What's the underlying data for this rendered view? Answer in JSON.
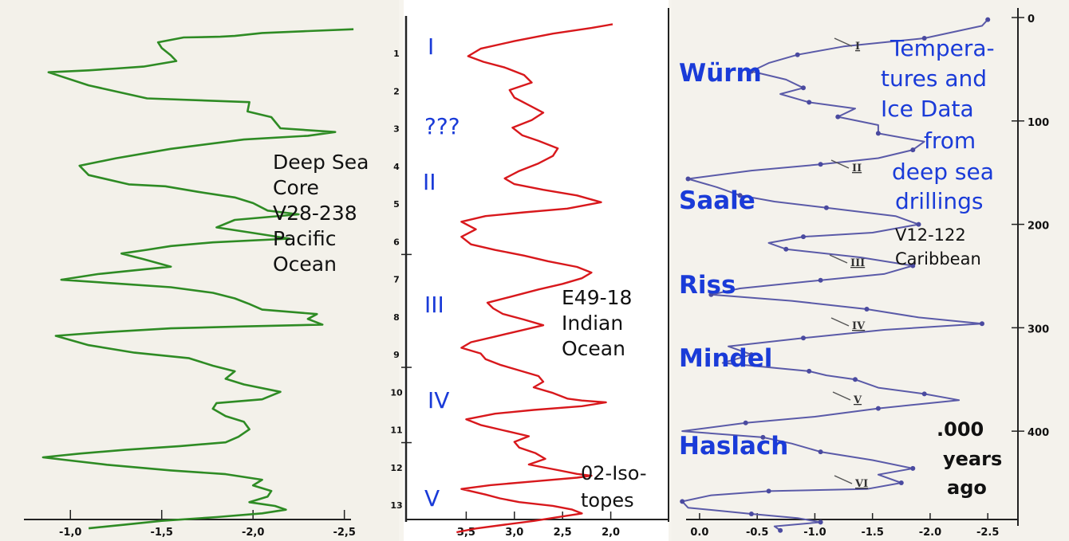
{
  "chart_data": [
    {
      "type": "line",
      "panel": "left",
      "color": "#2e8b24",
      "xlabel": "",
      "ylabel": "",
      "x_ticks": [
        "-1,0",
        "-1,5",
        "-2,0",
        "-2,5"
      ],
      "xlim": [
        -0.75,
        -2.65
      ],
      "ylim": [
        0,
        13
      ],
      "annotation": [
        "Deep Sea",
        "Core",
        "V28-238",
        "Pacific",
        "Ocean"
      ],
      "series": [
        {
          "name": "V28-238",
          "x": [
            -2.55,
            -2.3,
            -2.05,
            -1.9,
            -1.82,
            -1.62,
            -1.48,
            -1.5,
            -1.55,
            -1.58,
            -1.4,
            -1.25,
            -1.1,
            -0.88,
            -1.1,
            -1.42,
            -1.98,
            -1.97,
            -2.1,
            -2.15,
            -2.45,
            -2.3,
            -1.95,
            -1.55,
            -1.25,
            -1.05,
            -1.1,
            -1.32,
            -1.52,
            -1.7,
            -1.9,
            -2.0,
            -2.08,
            -2.25,
            -1.9,
            -1.8,
            -2.0,
            -2.2,
            -1.78,
            -1.55,
            -1.42,
            -1.28,
            -1.4,
            -1.55,
            -1.35,
            -1.15,
            -0.95,
            -1.25,
            -1.55,
            -1.78,
            -1.9,
            -1.98,
            -2.05,
            -2.35,
            -2.3,
            -2.38,
            -1.95,
            -1.55,
            -1.2,
            -0.92,
            -1.1,
            -1.35,
            -1.65,
            -1.78,
            -1.9,
            -1.85,
            -1.95,
            -2.15,
            -2.05,
            -1.8,
            -1.78,
            -1.85,
            -1.95,
            -1.98,
            -1.92,
            -1.85,
            -1.6,
            -1.3,
            -1.05,
            -0.85,
            -1.2,
            -1.55,
            -1.85,
            -2.05,
            -2.0,
            -2.1,
            -2.08,
            -1.98,
            -2.12,
            -2.18,
            -2.05,
            -1.8,
            -1.5,
            -1.3,
            -1.1
          ],
          "y": [
            0.1,
            0.15,
            0.2,
            0.28,
            0.3,
            0.32,
            0.45,
            0.6,
            0.8,
            0.95,
            1.1,
            1.15,
            1.2,
            1.25,
            1.6,
            1.95,
            2.05,
            2.3,
            2.45,
            2.75,
            2.85,
            2.95,
            3.05,
            3.3,
            3.55,
            3.75,
            4.0,
            4.25,
            4.3,
            4.45,
            4.6,
            4.75,
            4.95,
            5.05,
            5.2,
            5.4,
            5.55,
            5.7,
            5.8,
            5.9,
            6.0,
            6.1,
            6.25,
            6.45,
            6.55,
            6.65,
            6.8,
            6.9,
            7.0,
            7.15,
            7.3,
            7.45,
            7.6,
            7.72,
            7.85,
            8.0,
            8.05,
            8.1,
            8.2,
            8.3,
            8.55,
            8.75,
            8.9,
            9.1,
            9.25,
            9.45,
            9.6,
            9.8,
            10.0,
            10.1,
            10.25,
            10.45,
            10.6,
            10.8,
            11.0,
            11.15,
            11.25,
            11.35,
            11.45,
            11.55,
            11.75,
            11.9,
            12.0,
            12.15,
            12.3,
            12.45,
            12.6,
            12.75,
            12.85,
            12.95,
            13.05,
            13.15,
            13.25,
            13.35,
            13.45
          ]
        }
      ]
    },
    {
      "type": "line",
      "panel": "middle",
      "color": "#d8181c",
      "xlabel": "",
      "ylabel": "",
      "x_ticks": [
        "3,5",
        "3,0",
        "2,5",
        "2,0"
      ],
      "xlim": [
        4.0,
        1.5
      ],
      "ylim": [
        0,
        13
      ],
      "depth_ticks": [
        "1",
        "2",
        "3",
        "4",
        "5",
        "6",
        "7",
        "8",
        "9",
        "10",
        "11",
        "12",
        "13"
      ],
      "annotation": [
        "E49-18",
        "Indian",
        "Ocean"
      ],
      "isotope_note": [
        "02-Iso-",
        "topes"
      ],
      "stage_labels": [
        "I",
        "???",
        "II",
        "III",
        "IV",
        "V"
      ],
      "series": [
        {
          "name": "E49-18",
          "x": [
            1.98,
            2.2,
            2.6,
            3.0,
            3.35,
            3.48,
            3.32,
            3.1,
            2.9,
            2.82,
            3.05,
            3.0,
            2.85,
            2.7,
            2.82,
            3.02,
            2.92,
            2.75,
            2.55,
            2.6,
            2.75,
            2.95,
            3.1,
            3.0,
            2.7,
            2.35,
            2.1,
            2.45,
            2.9,
            3.3,
            3.55,
            3.4,
            3.55,
            3.45,
            3.2,
            2.9,
            2.65,
            2.35,
            2.2,
            2.3,
            2.5,
            2.75,
            3.05,
            3.28,
            3.22,
            3.12,
            2.9,
            2.7,
            2.95,
            3.2,
            3.45,
            3.55,
            3.35,
            3.3,
            3.15,
            2.95,
            2.75,
            2.7,
            2.8,
            2.6,
            2.45,
            2.3,
            2.05,
            2.3,
            2.8,
            3.2,
            3.5,
            3.35,
            3.1,
            2.85,
            3.0,
            2.95,
            2.78,
            2.68,
            2.85,
            2.55,
            2.35,
            2.2,
            2.35,
            2.8,
            3.25,
            3.55,
            3.3,
            3.15,
            2.95,
            2.6,
            2.4,
            2.3,
            2.55,
            2.8,
            3.1,
            3.4,
            3.6
          ],
          "y": [
            0.05,
            0.15,
            0.3,
            0.5,
            0.7,
            0.9,
            1.05,
            1.2,
            1.4,
            1.6,
            1.8,
            2.0,
            2.2,
            2.4,
            2.6,
            2.8,
            3.0,
            3.15,
            3.35,
            3.55,
            3.75,
            3.95,
            4.15,
            4.3,
            4.45,
            4.6,
            4.78,
            4.95,
            5.05,
            5.15,
            5.3,
            5.5,
            5.7,
            5.9,
            6.05,
            6.2,
            6.35,
            6.5,
            6.65,
            6.8,
            6.95,
            7.1,
            7.3,
            7.45,
            7.6,
            7.75,
            7.9,
            8.05,
            8.2,
            8.35,
            8.5,
            8.65,
            8.8,
            8.95,
            9.1,
            9.25,
            9.4,
            9.55,
            9.7,
            9.85,
            10.0,
            10.05,
            10.1,
            10.2,
            10.3,
            10.4,
            10.55,
            10.7,
            10.85,
            11.0,
            11.15,
            11.3,
            11.45,
            11.6,
            11.75,
            11.9,
            12.0,
            12.05,
            12.1,
            12.2,
            12.3,
            12.4,
            12.55,
            12.65,
            12.75,
            12.85,
            12.95,
            13.05,
            13.15,
            13.25,
            13.35,
            13.45,
            13.55
          ]
        }
      ]
    },
    {
      "type": "line",
      "panel": "right",
      "color": "#5a5aa8",
      "xlabel": "",
      "ylabel": "",
      "x_ticks": [
        "0.0",
        "-0.5",
        "-1.0",
        "-1.5",
        "-2.0",
        "-2.5"
      ],
      "xlim": [
        0.2,
        -2.9
      ],
      "y_ticks": [
        "0",
        "100",
        "200",
        "300",
        "400"
      ],
      "ylim": [
        0,
        470
      ],
      "annotation": [
        "V12-122",
        "Caribbean"
      ],
      "title_lines": [
        "Tempera-",
        "tures and",
        "Ice Data",
        "from",
        "deep sea",
        "drillings"
      ],
      "unit_note": [
        ".000",
        "years",
        "ago"
      ],
      "glacials": [
        "Würm",
        "Saale",
        "Riss",
        "Mindel",
        "Haslach"
      ],
      "stage_marks": [
        "I",
        "II",
        "III",
        "IV",
        "V",
        "VI"
      ],
      "series": [
        {
          "name": "V12-122",
          "x": [
            -2.5,
            -2.45,
            -1.95,
            -1.25,
            -0.85,
            -0.6,
            -0.45,
            -0.75,
            -0.9,
            -0.7,
            -0.95,
            -1.35,
            -1.2,
            -1.55,
            -1.55,
            -1.95,
            -1.85,
            -1.55,
            -1.05,
            -0.45,
            0.1,
            -0.15,
            -0.35,
            -0.65,
            -1.1,
            -1.7,
            -1.9,
            -1.5,
            -0.9,
            -0.6,
            -0.75,
            -1.4,
            -1.85,
            -1.6,
            -1.05,
            -0.35,
            -0.1,
            -0.8,
            -1.45,
            -1.9,
            -2.45,
            -1.6,
            -0.9,
            -0.25,
            -0.45,
            -0.2,
            -0.95,
            -1.1,
            -1.35,
            -1.55,
            -1.95,
            -2.25,
            -1.55,
            -1.0,
            -0.4,
            0.15,
            -0.55,
            -0.8,
            -1.05,
            -1.5,
            -1.85,
            -1.55,
            -1.75,
            -1.45,
            -0.6,
            -0.1,
            0.15,
            0.1,
            -0.45,
            -0.85,
            -1.05,
            -0.65,
            -0.7
          ],
          "y": [
            2,
            8,
            20,
            28,
            36,
            44,
            52,
            60,
            68,
            74,
            82,
            88,
            96,
            104,
            112,
            120,
            128,
            136,
            142,
            148,
            156,
            164,
            172,
            178,
            184,
            192,
            200,
            208,
            212,
            218,
            224,
            232,
            240,
            248,
            254,
            262,
            268,
            274,
            282,
            290,
            296,
            302,
            310,
            318,
            326,
            334,
            342,
            346,
            350,
            358,
            364,
            370,
            378,
            386,
            392,
            400,
            406,
            412,
            420,
            428,
            436,
            442,
            450,
            456,
            458,
            462,
            468,
            474,
            480,
            484,
            488,
            492,
            496
          ]
        }
      ]
    }
  ]
}
